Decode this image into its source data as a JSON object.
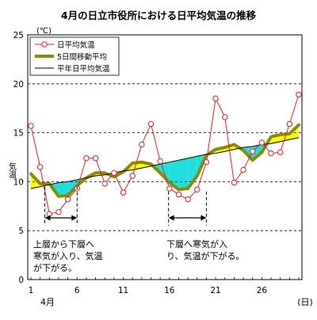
{
  "chart_data": {
    "type": "line",
    "title": "4月の日立市役所における日平均気温の推移",
    "unit_label": "(℃)",
    "ylabel": "気温",
    "x_unit_label": "(日)",
    "month_label": "4月",
    "ylim": [
      0,
      25
    ],
    "y_ticks": [
      0,
      5,
      10,
      15,
      20,
      25
    ],
    "xlim": [
      1,
      30
    ],
    "x_ticks": [
      1,
      6,
      11,
      16,
      21,
      26
    ],
    "grid": "horizontal dashed",
    "legend_position": "top-left",
    "x": [
      1,
      2,
      3,
      4,
      5,
      6,
      7,
      8,
      9,
      10,
      11,
      12,
      13,
      14,
      15,
      16,
      17,
      18,
      19,
      20,
      21,
      22,
      23,
      24,
      25,
      26,
      27,
      28,
      29,
      30
    ],
    "series": [
      {
        "name": "日平均気温",
        "color": "#dd2222",
        "marker": "open-circle",
        "values": [
          15.7,
          11.5,
          6.7,
          6.9,
          8.2,
          9.3,
          12.4,
          12.4,
          9.8,
          10.9,
          8.9,
          10.6,
          13.8,
          15.9,
          12.1,
          9.3,
          8.7,
          8.2,
          9.2,
          12.0,
          18.5,
          16.6,
          9.9,
          11.2,
          13.1,
          14.0,
          12.9,
          13.0,
          15.9,
          18.9
        ]
      },
      {
        "name": "5日間移動平均",
        "color": "#8a8a00",
        "values": [
          10.8,
          9.8,
          9.8,
          8.5,
          8.6,
          9.6,
          10.4,
          10.9,
          10.9,
          10.5,
          11.0,
          11.9,
          12.0,
          11.8,
          10.9,
          9.9,
          9.2,
          9.3,
          10.6,
          12.7,
          13.3,
          13.5,
          13.8,
          13.2,
          12.2,
          13.0,
          14.6,
          14.8,
          14.9,
          15.8
        ]
      },
      {
        "name": "平年日平均気温",
        "color": "#000000",
        "values": [
          9.3,
          9.5,
          9.7,
          9.9,
          10.0,
          10.2,
          10.4,
          10.6,
          10.7,
          10.9,
          11.1,
          11.2,
          11.4,
          11.6,
          11.8,
          12.0,
          12.2,
          12.4,
          12.6,
          12.8,
          12.9,
          13.1,
          13.3,
          13.5,
          13.6,
          13.8,
          13.9,
          14.1,
          14.3,
          14.5
        ]
      }
    ],
    "fill_colors": {
      "above_normal": "#ffff00",
      "below_normal": "#22dddd"
    },
    "annotations": [
      {
        "text_lines": [
          "上層から下層へ",
          "寒気が入り、気温",
          "が下がる。"
        ],
        "range": [
          2.5,
          6.0
        ]
      },
      {
        "text_lines": [
          "下層へ寒気が入",
          "り、気温が下がる。"
        ],
        "range": [
          15.9,
          20.0
        ]
      }
    ]
  }
}
